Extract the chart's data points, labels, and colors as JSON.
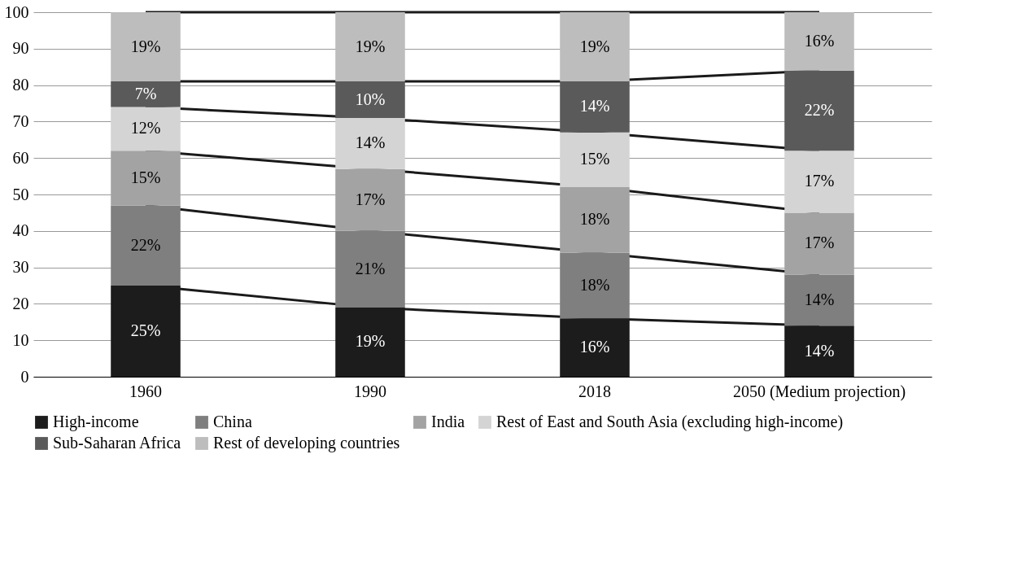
{
  "chart_data": {
    "type": "bar",
    "stacked": true,
    "categories": [
      "1960",
      "1990",
      "2018",
      "2050 (Medium projection)"
    ],
    "series": [
      {
        "name": "High-income",
        "color": "#1c1c1c",
        "values": [
          25,
          19,
          16,
          14
        ],
        "value_labels": [
          "25%",
          "19%",
          "16%",
          "14%"
        ]
      },
      {
        "name": "China",
        "color": "#7f7f7f",
        "values": [
          22,
          21,
          18,
          14
        ],
        "value_labels": [
          "22%",
          "21%",
          "18%",
          "14%"
        ]
      },
      {
        "name": "India",
        "color": "#a3a3a3",
        "values": [
          15,
          17,
          18,
          17
        ],
        "value_labels": [
          "15%",
          "17%",
          "18%",
          "17%"
        ]
      },
      {
        "name": "Rest of East and South Asia (excluding high-income)",
        "color": "#d4d4d4",
        "values": [
          12,
          14,
          15,
          17
        ],
        "value_labels": [
          "12%",
          "14%",
          "15%",
          "17%"
        ]
      },
      {
        "name": "Sub-Saharan Africa",
        "color": "#5a5a5a",
        "values": [
          7,
          10,
          14,
          22
        ],
        "value_labels": [
          "7%",
          "10%",
          "14%",
          "22%"
        ]
      },
      {
        "name": "Rest of developing countries",
        "color": "#bdbdbd",
        "values": [
          19,
          19,
          19,
          16
        ],
        "value_labels": [
          "19%",
          "19%",
          "19%",
          "16%"
        ]
      }
    ],
    "ylim": [
      0,
      100
    ],
    "yticks": [
      0,
      10,
      20,
      30,
      40,
      50,
      60,
      70,
      80,
      90,
      100
    ],
    "grid": "y",
    "legend": "bottom"
  }
}
